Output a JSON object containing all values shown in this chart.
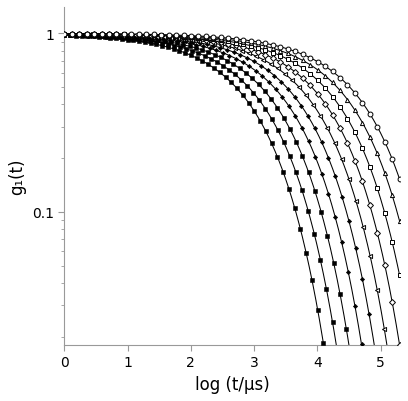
{
  "xlabel": "log (t/μs)",
  "ylabel": "g₁(t)",
  "xlim": [
    0,
    5.3
  ],
  "ylim_log": [
    0.018,
    1.4
  ],
  "background_color": "#ffffff",
  "curves": [
    {
      "tau_c": 3.0,
      "beta": 0.55,
      "marker": "s",
      "filled": true,
      "ms": 2.2
    },
    {
      "tau_c": 3.2,
      "beta": 0.55,
      "marker": "s",
      "filled": true,
      "ms": 2.2
    },
    {
      "tau_c": 3.4,
      "beta": 0.55,
      "marker": "s",
      "filled": true,
      "ms": 2.2
    },
    {
      "tau_c": 3.6,
      "beta": 0.55,
      "marker": "D",
      "filled": true,
      "ms": 2.2
    },
    {
      "tau_c": 3.8,
      "beta": 0.55,
      "marker": "D",
      "filled": true,
      "ms": 2.2
    },
    {
      "tau_c": 4.0,
      "beta": 0.55,
      "marker": "<",
      "filled": false,
      "ms": 3.0
    },
    {
      "tau_c": 4.2,
      "beta": 0.55,
      "marker": "D",
      "filled": false,
      "ms": 3.0
    },
    {
      "tau_c": 4.4,
      "beta": 0.55,
      "marker": "s",
      "filled": false,
      "ms": 3.0
    },
    {
      "tau_c": 4.6,
      "beta": 0.55,
      "marker": "^",
      "filled": false,
      "ms": 3.0
    },
    {
      "tau_c": 4.8,
      "beta": 0.55,
      "marker": "o",
      "filled": false,
      "ms": 3.5
    }
  ],
  "color": "#000000",
  "line_color": "#000000",
  "tick_fontsize": 10,
  "label_fontsize": 12
}
